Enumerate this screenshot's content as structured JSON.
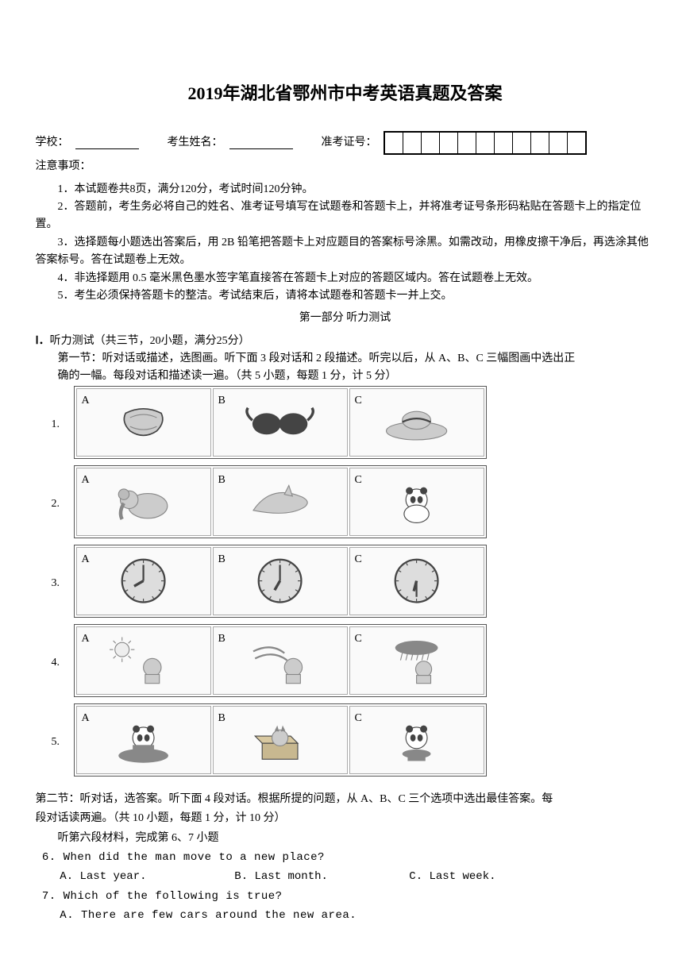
{
  "title": "2019年湖北省鄂州市中考英语真题及答案",
  "header": {
    "school_label": "学校：",
    "name_label": "考生姓名：",
    "exam_id_label": "准考证号：",
    "id_box_count": 11
  },
  "notice_label": "注意事项：",
  "instructions": [
    "1．本试题卷共8页，满分120分，考试时间120分钟。",
    "2．答题前，考生务必将自己的姓名、准考证号填写在试题卷和答题卡上，并将准考证号条形码粘贴在答题卡上的指定位置。",
    "3．选择题每小题选出答案后，用 2B 铅笔把答题卡上对应题目的答案标号涂黑。如需改动，用橡皮擦干净后，再选涂其他答案标号。答在试题卷上无效。",
    "4．非选择题用 0.5 毫米黑色墨水签字笔直接答在答题卡上对应的答题区域内。答在试题卷上无效。",
    "5．考生必须保持答题卡的整洁。考试结束后，请将本试题卷和答题卡一并上交。"
  ],
  "part1_title": "第一部分  听力测试",
  "listening_header": "听力测试（共三节，20小题，满分25分）",
  "listening_sec1_a": "第一节：听对话或描述，选图画。听下面 3 段对话和 2 段描述。听完以后，从 A、B、C 三幅图画中选出正",
  "listening_sec1_b": "确的一幅。每段对话和描述读一遍。（共 5 小题，每题 1 分，计 5 分）",
  "image_questions": [
    {
      "num": "1.",
      "opts": [
        "A",
        "B",
        "C"
      ],
      "imgs": [
        "scarf",
        "sunglasses",
        "sunhat"
      ]
    },
    {
      "num": "2.",
      "opts": [
        "A",
        "B",
        "C"
      ],
      "imgs": [
        "elephant",
        "dolphin",
        "panda"
      ]
    },
    {
      "num": "3.",
      "opts": [
        "A",
        "B",
        "C"
      ],
      "imgs": [
        "clock-8",
        "clock-7",
        "clock-630"
      ]
    },
    {
      "num": "4.",
      "opts": [
        "A",
        "B",
        "C"
      ],
      "imgs": [
        "sunny",
        "windy",
        "rainy"
      ]
    },
    {
      "num": "5.",
      "opts": [
        "A",
        "B",
        "C"
      ],
      "imgs": [
        "panda-hat",
        "fox-box",
        "panda-stool"
      ]
    }
  ],
  "sec2_intro_a": "第二节：听对话，选答案。听下面 4 段对话。根据所提的问题，从 A、B、C 三个选项中选出最佳答案。每",
  "sec2_intro_b": "段对话读两遍。（共 10 小题，每题 1 分，计 10 分）",
  "sec2_material": "听第六段材料，完成第 6、7 小题",
  "q6": {
    "num": "6.",
    "text": "When did the man move to a new place?",
    "opts": [
      "A. Last year.",
      "B. Last month.",
      "C. Last week."
    ]
  },
  "q7": {
    "num": "7.",
    "text": "Which of the following is true?",
    "optA": "A. There are few cars around the new area."
  },
  "colors": {
    "text": "#000000",
    "border": "#555555",
    "cell_border": "#aaaaaa",
    "bg": "#ffffff"
  }
}
